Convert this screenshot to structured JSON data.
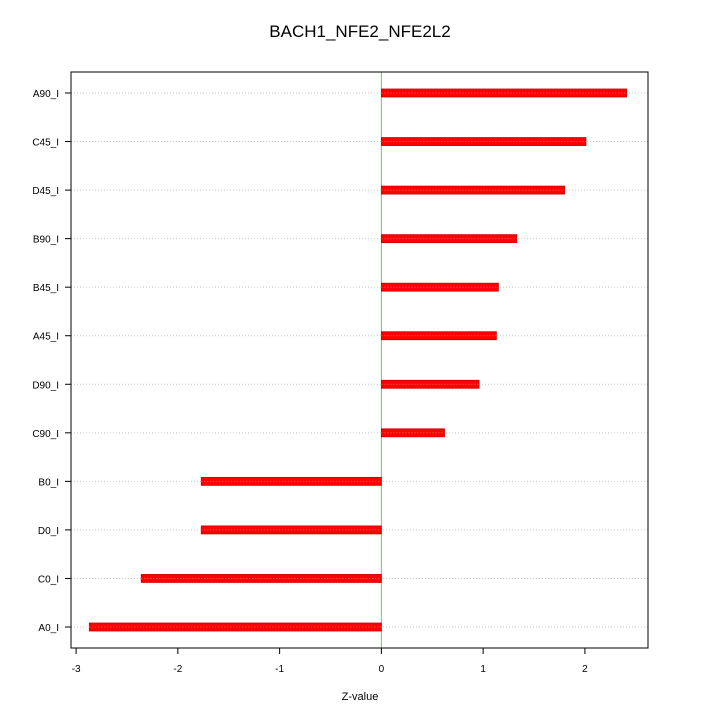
{
  "chart_data": {
    "type": "bar",
    "orientation": "horizontal",
    "title": "BACH1_NFE2_NFE2L2",
    "xlabel": "Z-value",
    "ylabel": "",
    "categories": [
      "A90_I",
      "C45_I",
      "D45_I",
      "B90_I",
      "B45_I",
      "A45_I",
      "D90_I",
      "C90_I",
      "B0_I",
      "D0_I",
      "C0_I",
      "A0_I"
    ],
    "values": [
      2.41,
      2.01,
      1.8,
      1.33,
      1.15,
      1.13,
      0.96,
      0.62,
      -1.77,
      -1.77,
      -2.36,
      -2.87
    ],
    "xlim": [
      -3.05,
      2.62
    ],
    "xticks": [
      -3,
      -2,
      -1,
      0,
      1,
      2
    ],
    "grid": "horizontal dotted",
    "reference_line": 0,
    "colors": {
      "bar": "#ff0000",
      "bar_edge": "#cc0000",
      "zero_line": "#66cc66",
      "grid": "#c8c8c8",
      "axis": "#000000"
    }
  }
}
